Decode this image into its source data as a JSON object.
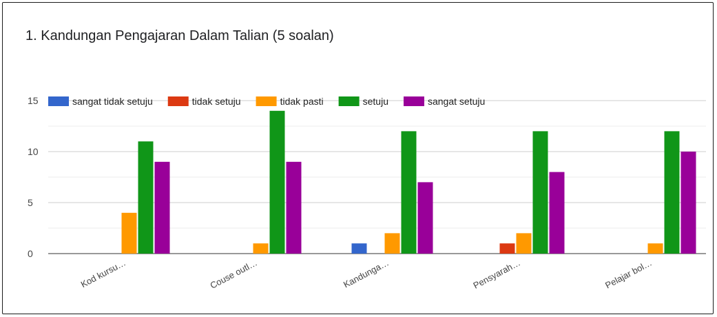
{
  "chart_data": {
    "type": "bar",
    "title": "1. Kandungan Pengajaran Dalam Talian (5 soalan)",
    "categories": [
      "Kod kursu…",
      "Couse outl…",
      "Kandunga…",
      "Pensyarah…",
      "Pelajar bol…"
    ],
    "series": [
      {
        "name": "sangat tidak setuju",
        "color": "#3366cc",
        "values": [
          0,
          0,
          1,
          0,
          0
        ]
      },
      {
        "name": "tidak setuju",
        "color": "#dc3912",
        "values": [
          0,
          0,
          0,
          1,
          0
        ]
      },
      {
        "name": "tidak pasti",
        "color": "#ff9900",
        "values": [
          4,
          1,
          2,
          2,
          1
        ]
      },
      {
        "name": "setuju",
        "color": "#109618",
        "values": [
          11,
          14,
          12,
          12,
          12
        ]
      },
      {
        "name": "sangat setuju",
        "color": "#990099",
        "values": [
          9,
          9,
          7,
          8,
          10
        ]
      }
    ],
    "ylim": [
      0,
      15
    ],
    "yticks": [
      0,
      5,
      10,
      15
    ],
    "grid": true,
    "legend_position": "top-left"
  }
}
